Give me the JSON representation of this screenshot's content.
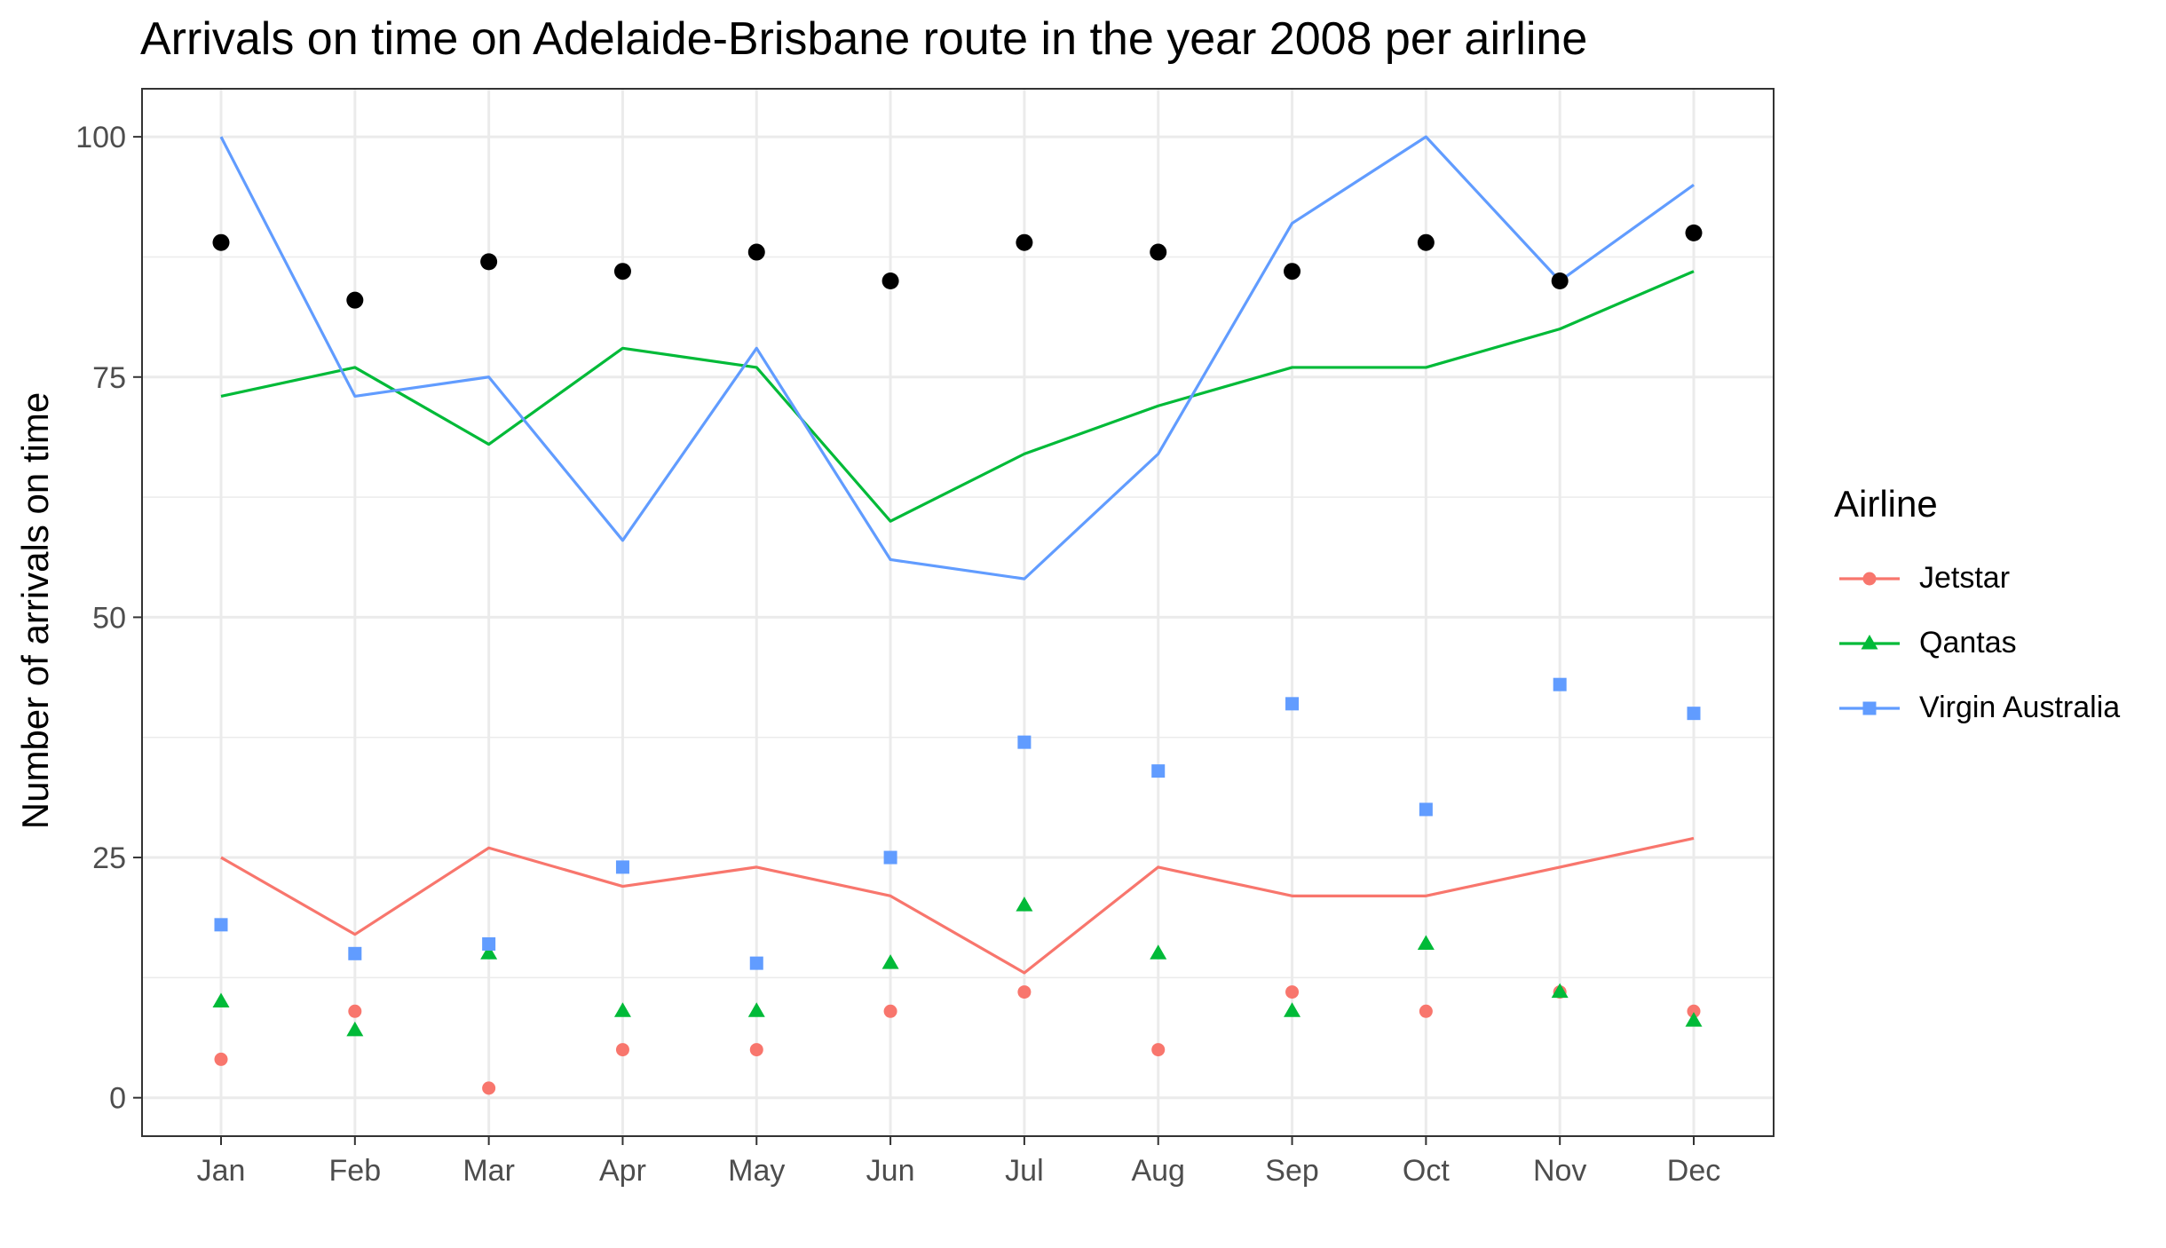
{
  "chart_data": {
    "type": "line",
    "title": "Arrivals on time on Adelaide-Brisbane route in the year 2008 per airline",
    "ylabel": "Number of arrivals on time",
    "xlabel": "",
    "categories": [
      "Jan",
      "Feb",
      "Mar",
      "Apr",
      "May",
      "Jun",
      "Jul",
      "Aug",
      "Sep",
      "Oct",
      "Nov",
      "Dec"
    ],
    "ylim": [
      -4,
      105
    ],
    "yticks": [
      0,
      25,
      50,
      75,
      100
    ],
    "grid": true,
    "legend": {
      "title": "Airline",
      "placement": "right"
    },
    "series": [
      {
        "name": "Jetstar",
        "color": "#F8766D",
        "marker": "circle",
        "line_values": [
          25,
          17,
          26,
          22,
          24,
          21,
          13,
          24,
          21,
          21,
          24,
          27
        ],
        "point_values": [
          4,
          9,
          1,
          5,
          5,
          9,
          11,
          5,
          11,
          9,
          11,
          9
        ]
      },
      {
        "name": "Qantas",
        "color": "#00BA38",
        "marker": "triangle",
        "line_values": [
          73,
          76,
          68,
          78,
          76,
          60,
          67,
          72,
          76,
          76,
          80,
          86
        ],
        "point_values": [
          10,
          7,
          15,
          9,
          9,
          14,
          20,
          15,
          9,
          16,
          11,
          8
        ]
      },
      {
        "name": "Virgin Australia",
        "color": "#619CFF",
        "marker": "square",
        "line_values": [
          100,
          73,
          75,
          58,
          78,
          56,
          54,
          67,
          91,
          100,
          85,
          95
        ],
        "point_values": [
          18,
          15,
          16,
          24,
          14,
          25,
          37,
          34,
          41,
          30,
          43,
          40
        ]
      }
    ],
    "extra_points": {
      "color": "#000000",
      "values": [
        89,
        83,
        87,
        86,
        88,
        85,
        89,
        88,
        86,
        89,
        85,
        90
      ]
    }
  }
}
